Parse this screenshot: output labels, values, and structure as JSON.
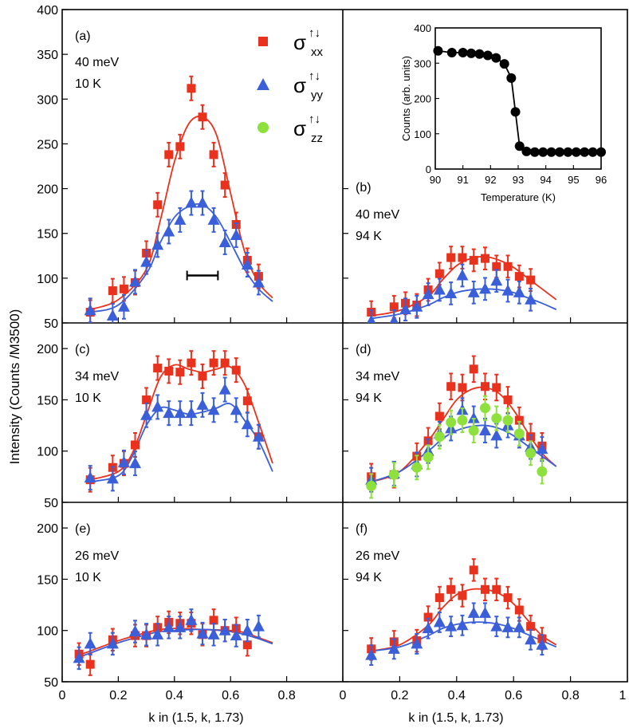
{
  "figure": {
    "ylabel": "Intensity (Counts /M3500)",
    "xlabel_left": "k in (1.5,   k, 1.73)",
    "xlabel_right": "k in (1.5,   k, 1.73)",
    "legend": [
      {
        "sym": "σ",
        "sup": "↑↓",
        "sub": "xx",
        "marker": "square",
        "color": "#e8321e"
      },
      {
        "sym": "σ",
        "sup": "↑↓",
        "sub": "yy",
        "marker": "triangle",
        "color": "#3b5fd9"
      },
      {
        "sym": "σ",
        "sup": "↑↓",
        "sub": "zz",
        "marker": "circle",
        "color": "#8ee03c"
      }
    ],
    "colors": {
      "xx": "#e8321e",
      "yy": "#3b5fd9",
      "zz": "#8ee03c"
    }
  },
  "chart_data": [
    {
      "panel": "(a)",
      "energy": "40 meV",
      "temp": "10 K",
      "type": "scatter",
      "xlim": [
        0,
        1
      ],
      "ylim": [
        50,
        400
      ],
      "yticks": [
        50,
        100,
        150,
        200,
        250,
        300,
        350,
        400
      ],
      "xticks": [
        0,
        0.2,
        0.4,
        0.6,
        0.8
      ],
      "resolution_bar": {
        "x0": 0.445,
        "x1": 0.555,
        "y": 103
      },
      "series": [
        {
          "name": "σxx",
          "marker": "square",
          "color": "#e8321e",
          "x": [
            0.1,
            0.18,
            0.22,
            0.26,
            0.3,
            0.34,
            0.38,
            0.42,
            0.46,
            0.5,
            0.54,
            0.58,
            0.62,
            0.66,
            0.7
          ],
          "y": [
            62,
            86,
            88,
            95,
            128,
            182,
            238,
            247,
            312,
            280,
            238,
            204,
            160,
            120,
            102
          ],
          "err": 8,
          "fit_x": [
            0.1,
            0.2,
            0.3,
            0.35,
            0.4,
            0.45,
            0.5,
            0.55,
            0.6,
            0.65,
            0.7,
            0.75
          ],
          "fit_y": [
            65,
            76,
            110,
            165,
            230,
            272,
            280,
            260,
            195,
            130,
            95,
            78
          ]
        },
        {
          "name": "σyy",
          "marker": "triangle",
          "color": "#3b5fd9",
          "x": [
            0.1,
            0.18,
            0.22,
            0.26,
            0.3,
            0.34,
            0.38,
            0.42,
            0.46,
            0.5,
            0.54,
            0.58,
            0.62,
            0.66,
            0.7
          ],
          "y": [
            64,
            58,
            68,
            96,
            118,
            137,
            152,
            165,
            184,
            184,
            165,
            140,
            148,
            115,
            95
          ],
          "err": 8,
          "fit_x": [
            0.1,
            0.2,
            0.3,
            0.35,
            0.4,
            0.45,
            0.5,
            0.55,
            0.6,
            0.65,
            0.7,
            0.75
          ],
          "fit_y": [
            62,
            70,
            105,
            140,
            168,
            180,
            182,
            168,
            140,
            110,
            88,
            74
          ]
        }
      ]
    },
    {
      "panel": "(b)",
      "energy": "40 meV",
      "temp": "94 K",
      "type": "scatter",
      "xlim": [
        0,
        1
      ],
      "ylim": [
        50,
        400
      ],
      "series": [
        {
          "name": "σxx",
          "marker": "square",
          "color": "#e8321e",
          "x": [
            0.1,
            0.18,
            0.22,
            0.26,
            0.3,
            0.34,
            0.38,
            0.42,
            0.46,
            0.5,
            0.54,
            0.58,
            0.62,
            0.66
          ],
          "y": [
            62,
            68,
            72,
            70,
            87,
            105,
            123,
            123,
            120,
            122,
            113,
            113,
            102,
            98
          ],
          "err": 7,
          "fit_x": [
            0.1,
            0.2,
            0.3,
            0.35,
            0.4,
            0.45,
            0.5,
            0.55,
            0.6,
            0.65,
            0.7,
            0.75
          ],
          "fit_y": [
            58,
            64,
            80,
            98,
            114,
            122,
            124,
            120,
            112,
            100,
            88,
            76
          ]
        },
        {
          "name": "σyy",
          "marker": "triangle",
          "color": "#3b5fd9",
          "x": [
            0.1,
            0.18,
            0.22,
            0.26,
            0.3,
            0.34,
            0.38,
            0.42,
            0.46,
            0.5,
            0.54,
            0.58,
            0.62,
            0.66
          ],
          "y": [
            52,
            52,
            65,
            68,
            82,
            87,
            83,
            103,
            84,
            88,
            97,
            86,
            84,
            76
          ],
          "err": 7,
          "fit_x": [
            0.1,
            0.2,
            0.3,
            0.35,
            0.4,
            0.45,
            0.5,
            0.55,
            0.6,
            0.65,
            0.7,
            0.75
          ],
          "fit_y": [
            55,
            60,
            70,
            78,
            84,
            87,
            88,
            87,
            84,
            78,
            72,
            65
          ]
        }
      ]
    },
    {
      "panel": "(c)",
      "energy": "34 meV",
      "temp": "10 K",
      "type": "scatter",
      "xlim": [
        0,
        1
      ],
      "ylim": [
        50,
        225
      ],
      "yticks": [
        50,
        100,
        150,
        200
      ],
      "series": [
        {
          "name": "σxx",
          "marker": "square",
          "color": "#e8321e",
          "x": [
            0.1,
            0.18,
            0.22,
            0.26,
            0.3,
            0.34,
            0.38,
            0.42,
            0.46,
            0.5,
            0.54,
            0.58,
            0.62,
            0.66,
            0.7
          ],
          "y": [
            72,
            84,
            88,
            106,
            150,
            181,
            178,
            177,
            186,
            173,
            186,
            186,
            179,
            149,
            114
          ],
          "err": 7,
          "fit_x": [
            0.1,
            0.2,
            0.25,
            0.3,
            0.35,
            0.4,
            0.45,
            0.5,
            0.55,
            0.6,
            0.65,
            0.7,
            0.75
          ],
          "fit_y": [
            72,
            80,
            98,
            135,
            172,
            184,
            180,
            177,
            180,
            182,
            165,
            128,
            88
          ]
        },
        {
          "name": "σyy",
          "marker": "triangle",
          "color": "#3b5fd9",
          "x": [
            0.1,
            0.18,
            0.22,
            0.26,
            0.3,
            0.34,
            0.38,
            0.42,
            0.46,
            0.5,
            0.54,
            0.58,
            0.62,
            0.66,
            0.7
          ],
          "y": [
            74,
            73,
            89,
            88,
            135,
            143,
            137,
            137,
            137,
            145,
            140,
            160,
            140,
            126,
            114
          ],
          "err": 7,
          "fit_x": [
            0.1,
            0.2,
            0.25,
            0.3,
            0.35,
            0.4,
            0.45,
            0.5,
            0.55,
            0.6,
            0.65,
            0.7,
            0.75
          ],
          "fit_y": [
            70,
            76,
            95,
            125,
            142,
            140,
            136,
            138,
            142,
            146,
            130,
            110,
            80
          ]
        }
      ]
    },
    {
      "panel": "(d)",
      "energy": "34 meV",
      "temp": "94 K",
      "type": "scatter",
      "xlim": [
        0,
        1
      ],
      "ylim": [
        50,
        225
      ],
      "series": [
        {
          "name": "σxx",
          "marker": "square",
          "color": "#e8321e",
          "x": [
            0.1,
            0.18,
            0.26,
            0.3,
            0.34,
            0.38,
            0.42,
            0.46,
            0.5,
            0.54,
            0.58,
            0.62,
            0.66,
            0.7
          ],
          "y": [
            75,
            77,
            95,
            110,
            134,
            163,
            162,
            180,
            163,
            162,
            150,
            130,
            114,
            105
          ],
          "err": 8,
          "fit_x": [
            0.1,
            0.2,
            0.3,
            0.35,
            0.4,
            0.45,
            0.5,
            0.55,
            0.6,
            0.65,
            0.7,
            0.75
          ],
          "fit_y": [
            70,
            80,
            110,
            130,
            150,
            160,
            162,
            156,
            140,
            118,
            98,
            85
          ]
        },
        {
          "name": "σyy",
          "marker": "triangle",
          "color": "#3b5fd9",
          "x": [
            0.1,
            0.18,
            0.26,
            0.3,
            0.34,
            0.38,
            0.42,
            0.46,
            0.5,
            0.54,
            0.58,
            0.62,
            0.66,
            0.7
          ],
          "y": [
            72,
            78,
            87,
            100,
            117,
            122,
            140,
            132,
            120,
            115,
            125,
            115,
            104,
            102
          ],
          "err": 7,
          "fit_x": [
            0.1,
            0.2,
            0.3,
            0.35,
            0.4,
            0.45,
            0.5,
            0.55,
            0.6,
            0.65,
            0.7,
            0.75
          ],
          "fit_y": [
            70,
            80,
            100,
            112,
            120,
            124,
            125,
            122,
            115,
            105,
            95,
            85
          ]
        },
        {
          "name": "σzz",
          "marker": "circle",
          "color": "#8ee03c",
          "x": [
            0.1,
            0.18,
            0.26,
            0.3,
            0.34,
            0.38,
            0.42,
            0.46,
            0.5,
            0.54,
            0.58,
            0.62,
            0.66,
            0.7
          ],
          "y": [
            66,
            77,
            84,
            94,
            114,
            128,
            130,
            120,
            142,
            132,
            130,
            117,
            98,
            80
          ],
          "err": 7
        }
      ]
    },
    {
      "panel": "(e)",
      "energy": "26 meV",
      "temp": "10 K",
      "type": "scatter",
      "xlim": [
        0,
        1
      ],
      "ylim": [
        50,
        225
      ],
      "yticks": [
        50,
        100,
        150,
        200
      ],
      "series": [
        {
          "name": "σxx",
          "marker": "square",
          "color": "#e8321e",
          "x": [
            0.06,
            0.1,
            0.18,
            0.26,
            0.3,
            0.34,
            0.38,
            0.42,
            0.46,
            0.5,
            0.54,
            0.58,
            0.62,
            0.66
          ],
          "y": [
            77,
            67,
            91,
            95,
            95,
            103,
            108,
            107,
            107,
            96,
            110,
            100,
            102,
            86
          ],
          "err": 6,
          "fit_x": [
            0.05,
            0.1,
            0.2,
            0.3,
            0.35,
            0.4,
            0.5,
            0.6,
            0.65,
            0.7,
            0.75
          ],
          "fit_y": [
            75,
            80,
            90,
            98,
            101,
            102,
            101,
            100,
            98,
            93,
            88
          ]
        },
        {
          "name": "σyy",
          "marker": "triangle",
          "color": "#3b5fd9",
          "x": [
            0.06,
            0.1,
            0.18,
            0.26,
            0.3,
            0.34,
            0.38,
            0.42,
            0.46,
            0.5,
            0.54,
            0.58,
            0.62,
            0.66,
            0.7
          ],
          "y": [
            73,
            87,
            87,
            99,
            96,
            96,
            103,
            103,
            110,
            97,
            96,
            100,
            95,
            100,
            104
          ],
          "err": 6,
          "fit_x": [
            0.05,
            0.1,
            0.2,
            0.3,
            0.35,
            0.4,
            0.5,
            0.6,
            0.65,
            0.7,
            0.75
          ],
          "fit_y": [
            73,
            78,
            88,
            96,
            99,
            100,
            101,
            99,
            96,
            92,
            87
          ]
        }
      ]
    },
    {
      "panel": "(f)",
      "energy": "26 meV",
      "temp": "94 K",
      "type": "scatter",
      "xlim": [
        0,
        1
      ],
      "ylim": [
        50,
        225
      ],
      "series": [
        {
          "name": "σxx",
          "marker": "square",
          "color": "#e8321e",
          "x": [
            0.1,
            0.18,
            0.26,
            0.3,
            0.34,
            0.38,
            0.42,
            0.46,
            0.5,
            0.54,
            0.58,
            0.62,
            0.66,
            0.7
          ],
          "y": [
            82,
            89,
            90,
            113,
            132,
            140,
            134,
            159,
            140,
            140,
            132,
            120,
            104,
            92
          ],
          "err": 6,
          "fit_x": [
            0.1,
            0.2,
            0.3,
            0.35,
            0.4,
            0.45,
            0.5,
            0.55,
            0.6,
            0.65,
            0.7,
            0.75
          ],
          "fit_y": [
            80,
            86,
            105,
            122,
            135,
            140,
            140,
            136,
            126,
            110,
            95,
            86
          ]
        },
        {
          "name": "σyy",
          "marker": "triangle",
          "color": "#3b5fd9",
          "x": [
            0.1,
            0.18,
            0.26,
            0.3,
            0.34,
            0.38,
            0.42,
            0.46,
            0.5,
            0.54,
            0.58,
            0.62,
            0.66,
            0.7
          ],
          "y": [
            76,
            82,
            87,
            102,
            108,
            104,
            105,
            117,
            117,
            104,
            103,
            103,
            91,
            86
          ],
          "err": 5,
          "fit_x": [
            0.1,
            0.2,
            0.3,
            0.35,
            0.4,
            0.45,
            0.5,
            0.55,
            0.6,
            0.65,
            0.7,
            0.75
          ],
          "fit_y": [
            80,
            84,
            95,
            102,
            106,
            108,
            108,
            106,
            102,
            96,
            90,
            84
          ]
        }
      ]
    },
    {
      "panel": "inset",
      "type": "line",
      "xlabel": "Temperature (K)",
      "ylabel": "Counts (arb. units)",
      "xlim": [
        90,
        96
      ],
      "ylim": [
        0,
        400
      ],
      "xticks": [
        90,
        91,
        92,
        93,
        94,
        95,
        96
      ],
      "yticks": [
        0,
        100,
        200,
        300,
        400
      ],
      "x": [
        90.1,
        90.6,
        91.0,
        91.3,
        91.6,
        91.9,
        92.2,
        92.5,
        92.75,
        92.9,
        93.05,
        93.3,
        93.6,
        93.9,
        94.2,
        94.5,
        94.8,
        95.1,
        95.4,
        95.7,
        96.0
      ],
      "y": [
        335,
        330,
        330,
        328,
        326,
        322,
        315,
        298,
        258,
        162,
        65,
        50,
        48,
        48,
        48,
        48,
        48,
        48,
        48,
        48,
        48
      ]
    }
  ]
}
